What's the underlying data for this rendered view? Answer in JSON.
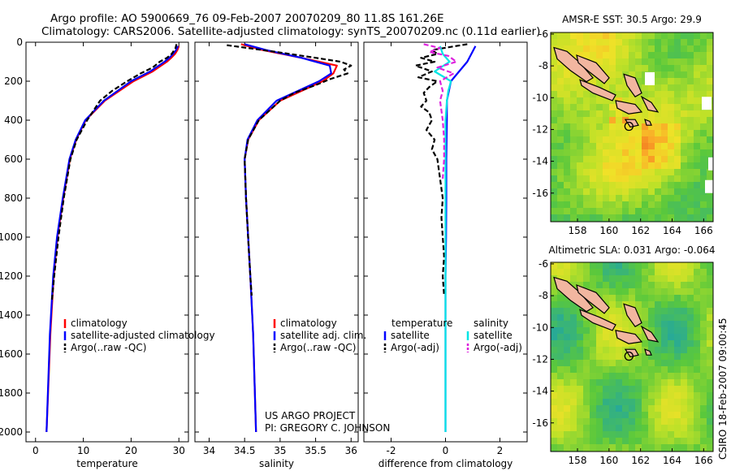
{
  "header": {
    "line1": "Argo profile: AO 5900669_76 09-Feb-2007 20070209_80 11.8S 161.26E",
    "line2": "Climatology: CARS2006. Satellite-adjusted climatology: synTS_20070209.nc (0.11d earlier)"
  },
  "colors": {
    "climatology": "#ff0000",
    "satellite": "#0000ff",
    "argo": "#000000",
    "sal_satellite": "#00e5e5",
    "sal_argo": "#dd22dd",
    "coast_land": "#f2b6a0"
  },
  "stamp": "CSIRO 18-Feb-2007 09:00:45",
  "project_note": {
    "line1": "US ARGO PROJECT",
    "line2": "PI: GREGORY C. JOHNSON"
  },
  "chart_data": [
    {
      "id": "temperature",
      "type": "line",
      "xlabel": "temperature",
      "ylabel": "",
      "xlim": [
        -2,
        32
      ],
      "ylim": [
        2050,
        0
      ],
      "xticks": [
        0,
        10,
        20,
        30
      ],
      "yticks": [
        0,
        200,
        400,
        600,
        800,
        1000,
        1200,
        1400,
        1600,
        1800,
        2000
      ],
      "legend": [
        "climatology",
        "satellite-adjusted climatology",
        "Argo(..raw -QC)"
      ],
      "series": [
        {
          "name": "climatology",
          "color": "#ff0000",
          "depth": [
            20,
            40,
            60,
            80,
            100,
            150,
            200,
            300,
            400,
            500,
            600,
            800,
            1000,
            1200,
            1500,
            2000
          ],
          "values": [
            30,
            29.7,
            29.2,
            28.4,
            27.5,
            24.5,
            20.5,
            14.5,
            10.5,
            8.5,
            7.2,
            5.8,
            4.6,
            3.8,
            3.1,
            2.3
          ]
        },
        {
          "name": "satellite-adjusted climatology",
          "color": "#0000ff",
          "depth": [
            20,
            40,
            60,
            80,
            100,
            150,
            200,
            300,
            400,
            500,
            600,
            800,
            1000,
            1200,
            1500,
            2000
          ],
          "values": [
            29.8,
            29.4,
            28.8,
            28,
            27,
            24,
            20,
            14.3,
            10.4,
            8.4,
            7.1,
            5.7,
            4.5,
            3.7,
            3,
            2.3
          ]
        },
        {
          "name": "Argo(..raw -QC)",
          "color": "#000000",
          "dash": "6,3",
          "depth": [
            10,
            30,
            60,
            80,
            100,
            130,
            160,
            200,
            250,
            300,
            400,
            500,
            600,
            800,
            1000,
            1200,
            1330
          ],
          "values": [
            29.5,
            29.3,
            28.5,
            27.5,
            26,
            24.5,
            22,
            19.2,
            16,
            13.5,
            10.8,
            8.6,
            7.3,
            5.9,
            4.8,
            3.9,
            3.4
          ]
        }
      ]
    },
    {
      "id": "salinity",
      "type": "line",
      "xlabel": "salinity",
      "ylabel": "",
      "xlim": [
        33.8,
        36.1
      ],
      "ylim": [
        2050,
        0
      ],
      "xticks": [
        34,
        34.5,
        35,
        35.5,
        36
      ],
      "yticks": [
        0,
        200,
        400,
        600,
        800,
        1000,
        1200,
        1400,
        1600,
        1800,
        2000
      ],
      "legend": [
        "climatology",
        "satellite adj. clim.",
        "Argo(..raw -QC)"
      ],
      "series": [
        {
          "name": "climatology",
          "color": "#ff0000",
          "depth": [
            10,
            40,
            80,
            120,
            160,
            200,
            250,
            300,
            400,
            500,
            600,
            800,
            1000,
            1200,
            1500,
            2000
          ],
          "values": [
            34.45,
            34.75,
            35.3,
            35.8,
            35.75,
            35.6,
            35.3,
            35,
            34.7,
            34.55,
            34.5,
            34.52,
            34.55,
            34.58,
            34.62,
            34.66
          ]
        },
        {
          "name": "satellite adj. clim.",
          "color": "#0000ff",
          "depth": [
            10,
            40,
            80,
            120,
            160,
            200,
            250,
            300,
            400,
            500,
            600,
            800,
            1000,
            1200,
            1500,
            2000
          ],
          "values": [
            34.5,
            34.8,
            35.3,
            35.7,
            35.72,
            35.55,
            35.25,
            34.95,
            34.68,
            34.54,
            34.5,
            34.52,
            34.55,
            34.58,
            34.62,
            34.66
          ]
        },
        {
          "name": "Argo(..raw -QC)",
          "color": "#000000",
          "dash": "6,3",
          "depth": [
            15,
            30,
            50,
            80,
            100,
            120,
            140,
            160,
            190,
            220,
            260,
            300,
            400,
            500,
            600,
            800,
            1000,
            1200,
            1300
          ],
          "values": [
            34.25,
            34.55,
            34.95,
            35.5,
            35.85,
            36,
            35.9,
            35.95,
            35.7,
            35.5,
            35.2,
            35,
            34.7,
            34.55,
            34.5,
            34.52,
            34.55,
            34.58,
            34.6
          ]
        }
      ]
    },
    {
      "id": "difference",
      "type": "line",
      "xlabel": "difference from climatology",
      "ylabel": "",
      "xlim": [
        -3,
        3
      ],
      "ylim": [
        2050,
        0
      ],
      "xticks": [
        -2,
        0,
        2
      ],
      "yticks": [
        0,
        200,
        400,
        600,
        800,
        1000,
        1200,
        1400,
        1600,
        1800,
        2000
      ],
      "legend_titles": [
        "temperature",
        "salinity"
      ],
      "legend": [
        "satellite",
        "Argo(-adj)",
        "satellite",
        "Argo(-adj)"
      ],
      "series": [
        {
          "name": "temperature satellite",
          "color": "#0000ff",
          "depth": [
            20,
            100,
            200,
            300,
            400,
            600,
            800,
            1000,
            1200,
            1500,
            2000
          ],
          "values": [
            1.1,
            0.8,
            0.2,
            0.05,
            0.05,
            0.03,
            0.03,
            0.02,
            0,
            0,
            0
          ]
        },
        {
          "name": "temperature Argo(-adj)",
          "color": "#000000",
          "dash": "6,3",
          "depth": [
            10,
            40,
            60,
            80,
            100,
            120,
            150,
            180,
            200,
            230,
            260,
            300,
            330,
            360,
            400,
            450,
            500,
            550,
            600,
            700,
            800,
            900,
            1000,
            1100,
            1200,
            1300
          ],
          "values": [
            0.8,
            -0.5,
            -0.3,
            -0.9,
            -0.4,
            -1.1,
            -0.5,
            -1,
            -0.3,
            -0.6,
            -0.8,
            -0.7,
            -0.9,
            -0.6,
            -0.5,
            -0.7,
            -0.4,
            -0.5,
            -0.3,
            -0.2,
            -0.1,
            -0.15,
            -0.1,
            -0.05,
            -0.1,
            -0.05
          ]
        },
        {
          "name": "salinity satellite",
          "color": "#00e5e5",
          "depth": [
            20,
            60,
            100,
            150,
            200,
            250,
            300,
            400,
            500,
            600,
            800,
            1000,
            1500,
            2000
          ],
          "values": [
            -0.2,
            -0.1,
            0.15,
            -0.4,
            0.2,
            0.1,
            0.05,
            0,
            0,
            0,
            0,
            0,
            0,
            0
          ]
        },
        {
          "name": "salinity Argo(-adj)",
          "color": "#dd22dd",
          "dash": "6,3",
          "depth": [
            10,
            30,
            50,
            70,
            100,
            130,
            160,
            200,
            250,
            300,
            400,
            500,
            600,
            700
          ],
          "values": [
            -0.8,
            -0.2,
            -0.6,
            0.1,
            0.4,
            -0.3,
            0.3,
            -0.2,
            -0.1,
            -0.2,
            -0.1,
            -0.05,
            -0.05,
            -0.1
          ]
        }
      ]
    }
  ],
  "maps": [
    {
      "id": "sst-map",
      "title": "AMSR-E SST: 30.5 Argo: 29.9",
      "lon_ticks": [
        "158",
        "160",
        "162",
        "164",
        "166"
      ],
      "lat_ticks": [
        "-6",
        "-8",
        "-10",
        "-12",
        "-14",
        "-16"
      ],
      "profile_marker": {
        "lon": 161.26,
        "lat": -11.8
      }
    },
    {
      "id": "sla-map",
      "title": "Altimetric SLA: 0.031 Argo: -0.064",
      "lon_ticks": [
        "158",
        "160",
        "162",
        "164",
        "166"
      ],
      "lat_ticks": [
        "-6",
        "-8",
        "-10",
        "-12",
        "-14",
        "-16"
      ],
      "profile_marker": {
        "lon": 161.26,
        "lat": -11.8
      }
    }
  ]
}
